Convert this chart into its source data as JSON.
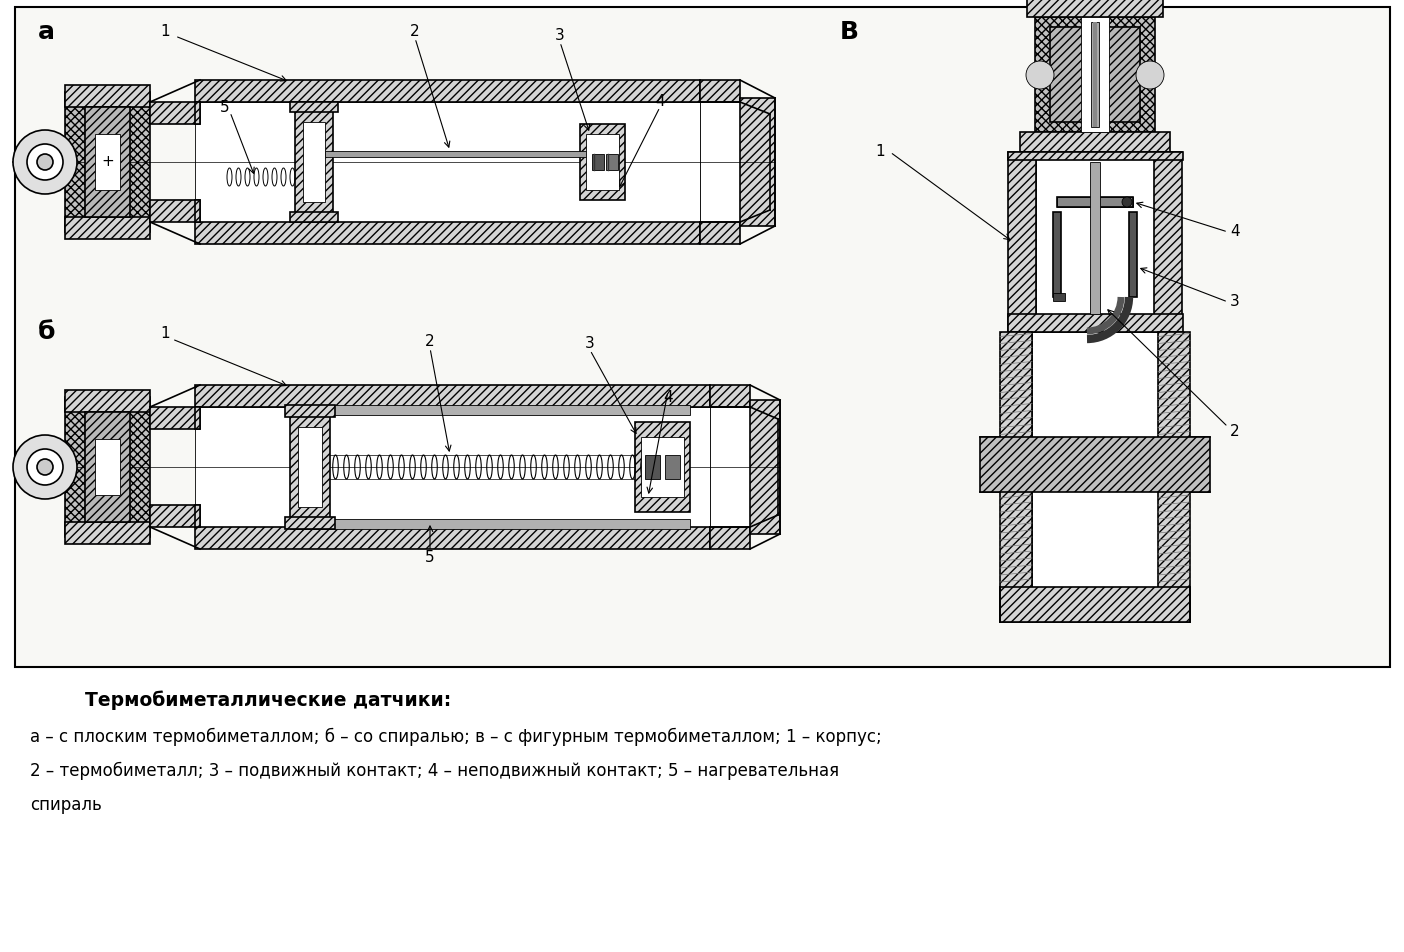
{
  "background_color": "#ffffff",
  "diagram_bg": "#f8f8f5",
  "caption_title": "Термобиметаллические датчики:",
  "caption_line1": "а – с плоским термобиметаллом; б – со спиралью; в – с фигурным термобиметаллом; 1 – корпус;",
  "caption_line2": "2 – термобиметалл; 3 – подвижный контакт; 4 – неподвижный контакт; 5 – нагревательная",
  "caption_line3": "спираль",
  "label_a": "а",
  "label_b": "б",
  "label_v": "В",
  "hatch_diag": "////",
  "hatch_cross": "xxxx",
  "fc_body": "#d4d4d4",
  "fc_white": "#ffffff",
  "fc_dark": "#888888",
  "ec": "#000000",
  "lw_main": 1.2,
  "lw_thin": 0.6,
  "lw_thick": 2.0
}
